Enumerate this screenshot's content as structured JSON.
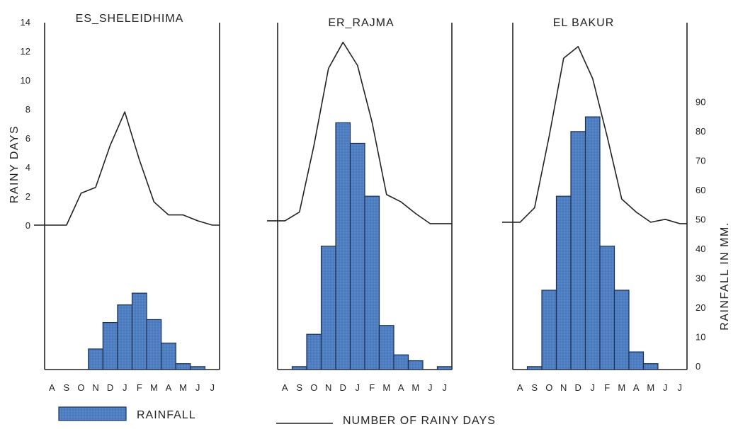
{
  "chart_data": [
    {
      "type": "bar",
      "title": "ES_SHELEIDHIMA",
      "categories": [
        "A",
        "S",
        "O",
        "N",
        "D",
        "J",
        "F",
        "M",
        "A",
        "M",
        "J",
        "J"
      ],
      "series": [
        {
          "name": "RAINFALL",
          "values": [
            0,
            0,
            0,
            7,
            16,
            22,
            26,
            17,
            9,
            2,
            1,
            0
          ]
        },
        {
          "name": "NUMBER OF RAINY DAYS",
          "type": "line",
          "values": [
            0,
            0,
            2.2,
            2.6,
            5.5,
            7.8,
            4.5,
            1.6,
            0.7,
            0.7,
            0.3,
            0
          ]
        }
      ]
    },
    {
      "type": "bar",
      "title": "ER_RAJMA",
      "categories": [
        "A",
        "S",
        "O",
        "N",
        "D",
        "J",
        "F",
        "M",
        "A",
        "M",
        "J",
        "J"
      ],
      "series": [
        {
          "name": "RAINFALL",
          "values": [
            0,
            1,
            12,
            42,
            84,
            77,
            59,
            15,
            5,
            3,
            0,
            1
          ]
        },
        {
          "name": "NUMBER OF RAINY DAYS",
          "type": "line",
          "values": [
            0.3,
            0.9,
            5.5,
            10.8,
            12.6,
            11,
            7.1,
            2.1,
            1.6,
            0.8,
            0.1,
            0.1
          ]
        }
      ]
    },
    {
      "type": "bar",
      "title": "EL BAKUR",
      "categories": [
        "A",
        "S",
        "O",
        "N",
        "D",
        "J",
        "F",
        "M",
        "A",
        "M",
        "J",
        "J"
      ],
      "series": [
        {
          "name": "RAINFALL",
          "values": [
            0,
            1,
            27,
            59,
            81,
            86,
            42,
            27,
            6,
            2,
            0,
            0
          ]
        },
        {
          "name": "NUMBER OF RAINY DAYS",
          "type": "line",
          "values": [
            0.2,
            1.2,
            6.1,
            11.5,
            12.3,
            10.1,
            6.1,
            1.8,
            0.9,
            0.2,
            0.4,
            0.1
          ]
        }
      ]
    }
  ],
  "axes": {
    "left": {
      "label": "RAINY DAYS",
      "ticks": [
        "0",
        "2",
        "4",
        "6",
        "8",
        "10",
        "12",
        "14"
      ],
      "range": [
        0,
        14
      ]
    },
    "right": {
      "label": "RAINFALL IN MM.",
      "ticks": [
        "0",
        "10",
        "20",
        "30",
        "40",
        "50",
        "60",
        "70",
        "80",
        "90"
      ],
      "range": [
        0,
        90
      ]
    }
  },
  "legend": {
    "rainfall_label": "RAINFALL",
    "rainy_days_label": "NUMBER OF RAINY DAYS",
    "placement": "bottom"
  },
  "colors": {
    "bar_fill": "#4f7fc2",
    "bar_stroke": "#1b2f55",
    "line": "#222222",
    "axis": "#222222"
  }
}
